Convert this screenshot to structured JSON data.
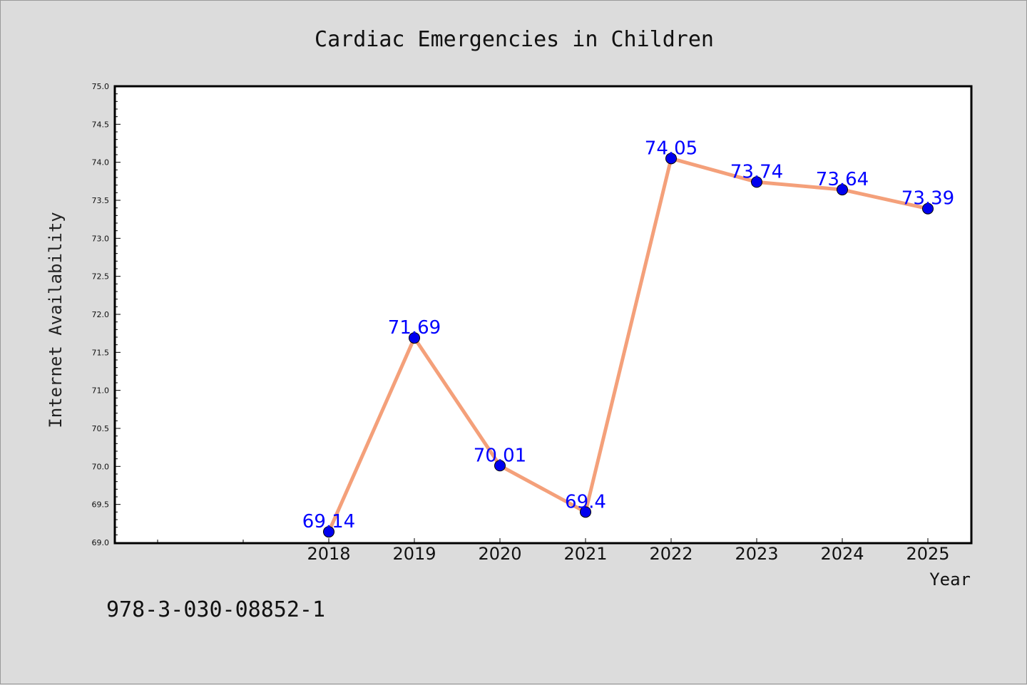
{
  "chart_data": {
    "type": "line",
    "title": "Cardiac Emergencies in Children",
    "xlabel": "Year",
    "ylabel": "Internet Availability",
    "categories": [
      "2018",
      "2019",
      "2020",
      "2021",
      "2022",
      "2023",
      "2024",
      "2025"
    ],
    "series": [
      {
        "values": [
          69.14,
          71.69,
          70.01,
          69.4,
          74.05,
          73.74,
          73.64,
          73.39
        ],
        "data_labels": [
          "69.14",
          "71.69",
          "70.01",
          "69.4",
          "74.05",
          "73.74",
          "73.64",
          "73.39"
        ],
        "line_color": "#f4a07a",
        "marker_color": "#0000ee"
      }
    ],
    "ylim": [
      69.0,
      75.0
    ],
    "yticks": [
      "69.0",
      "69.5",
      "70.0",
      "70.5",
      "71.0",
      "71.5",
      "72.0",
      "72.5",
      "73.0",
      "73.5",
      "74.0",
      "74.5",
      "75.0"
    ],
    "grid": false,
    "legend": "none",
    "label_color": "#0000ff"
  },
  "footer": {
    "isbn": "978-3-030-08852-1"
  },
  "colors": {
    "background": "#dcdcdc",
    "plot_background": "#ffffff"
  }
}
